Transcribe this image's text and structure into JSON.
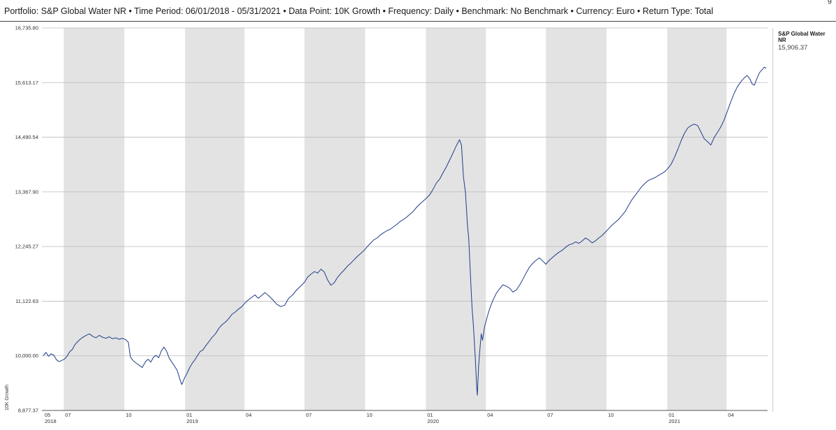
{
  "header": {
    "text": "Portfolio: S&P Global Water NR • Time Period: 06/01/2018 - 05/31/2021 • Data Point: 10K Growth • Frequency: Daily • Benchmark: No Benchmark • Currency: Euro • Return Type: Total",
    "corner": "g"
  },
  "legend": {
    "name": "S&P Global Water NR",
    "value": "15,906.37"
  },
  "colors": {
    "line": "#1f3c88",
    "band": "#e3e3e3",
    "grid": "#bbbbbb"
  },
  "chart_data": {
    "type": "line",
    "title": "",
    "xlabel": "",
    "ylabel": "10K Growth",
    "ylim": [
      8877.37,
      16735.8
    ],
    "y_ticks": [
      {
        "value": 16735.8,
        "label": "16,735.80"
      },
      {
        "value": 15613.17,
        "label": "15,613.17"
      },
      {
        "value": 14490.54,
        "label": "14,490.54"
      },
      {
        "value": 13367.9,
        "label": "13,367.90"
      },
      {
        "value": 12245.27,
        "label": "12,245.27"
      },
      {
        "value": 11122.63,
        "label": "11,122.63"
      },
      {
        "value": 10000.0,
        "label": "10,000.00"
      },
      {
        "value": 8877.37,
        "label": "8,877.37"
      }
    ],
    "x_ticks": [
      {
        "date": "2018-05-31",
        "label": "05",
        "year": "2018"
      },
      {
        "date": "2018-07-01",
        "label": "07",
        "year": ""
      },
      {
        "date": "2018-10-01",
        "label": "10",
        "year": ""
      },
      {
        "date": "2019-01-01",
        "label": "01",
        "year": "2019"
      },
      {
        "date": "2019-04-01",
        "label": "04",
        "year": ""
      },
      {
        "date": "2019-07-01",
        "label": "07",
        "year": ""
      },
      {
        "date": "2019-10-01",
        "label": "10",
        "year": ""
      },
      {
        "date": "2020-01-01",
        "label": "01",
        "year": "2020"
      },
      {
        "date": "2020-04-01",
        "label": "04",
        "year": ""
      },
      {
        "date": "2020-07-01",
        "label": "07",
        "year": ""
      },
      {
        "date": "2020-10-01",
        "label": "10",
        "year": ""
      },
      {
        "date": "2021-01-01",
        "label": "01",
        "year": "2021"
      },
      {
        "date": "2021-04-01",
        "label": "04",
        "year": ""
      }
    ],
    "shaded_bands": [
      [
        "2018-07-01",
        "2018-10-01"
      ],
      [
        "2019-01-01",
        "2019-04-01"
      ],
      [
        "2019-07-01",
        "2019-10-01"
      ],
      [
        "2020-01-01",
        "2020-04-01"
      ],
      [
        "2020-07-01",
        "2020-10-01"
      ],
      [
        "2021-01-01",
        "2021-04-01"
      ]
    ],
    "grid": true,
    "legend_position": "right",
    "series": [
      {
        "name": "S&P Global Water NR",
        "points": [
          [
            "2018-05-31",
            10000
          ],
          [
            "2018-06-04",
            10070
          ],
          [
            "2018-06-08",
            9990
          ],
          [
            "2018-06-12",
            10040
          ],
          [
            "2018-06-16",
            10010
          ],
          [
            "2018-06-20",
            9920
          ],
          [
            "2018-06-24",
            9880
          ],
          [
            "2018-06-28",
            9905
          ],
          [
            "2018-07-02",
            9930
          ],
          [
            "2018-07-06",
            9990
          ],
          [
            "2018-07-10",
            10080
          ],
          [
            "2018-07-14",
            10130
          ],
          [
            "2018-07-18",
            10230
          ],
          [
            "2018-07-22",
            10290
          ],
          [
            "2018-07-26",
            10340
          ],
          [
            "2018-07-30",
            10380
          ],
          [
            "2018-08-04",
            10420
          ],
          [
            "2018-08-09",
            10450
          ],
          [
            "2018-08-14",
            10400
          ],
          [
            "2018-08-19",
            10370
          ],
          [
            "2018-08-24",
            10420
          ],
          [
            "2018-08-29",
            10380
          ],
          [
            "2018-09-03",
            10360
          ],
          [
            "2018-09-08",
            10390
          ],
          [
            "2018-09-13",
            10350
          ],
          [
            "2018-09-18",
            10370
          ],
          [
            "2018-09-23",
            10340
          ],
          [
            "2018-09-28",
            10360
          ],
          [
            "2018-10-03",
            10330
          ],
          [
            "2018-10-07",
            10280
          ],
          [
            "2018-10-10",
            9980
          ],
          [
            "2018-10-13",
            9920
          ],
          [
            "2018-10-16",
            9880
          ],
          [
            "2018-10-20",
            9840
          ],
          [
            "2018-10-24",
            9800
          ],
          [
            "2018-10-28",
            9760
          ],
          [
            "2018-11-02",
            9880
          ],
          [
            "2018-11-06",
            9930
          ],
          [
            "2018-11-10",
            9870
          ],
          [
            "2018-11-14",
            9970
          ],
          [
            "2018-11-18",
            10010
          ],
          [
            "2018-11-22",
            9960
          ],
          [
            "2018-11-26",
            10100
          ],
          [
            "2018-11-30",
            10180
          ],
          [
            "2018-12-04",
            10090
          ],
          [
            "2018-12-08",
            9950
          ],
          [
            "2018-12-12",
            9870
          ],
          [
            "2018-12-16",
            9790
          ],
          [
            "2018-12-20",
            9700
          ],
          [
            "2018-12-24",
            9520
          ],
          [
            "2018-12-27",
            9410
          ],
          [
            "2018-12-31",
            9540
          ],
          [
            "2019-01-04",
            9640
          ],
          [
            "2019-01-08",
            9760
          ],
          [
            "2019-01-12",
            9850
          ],
          [
            "2019-01-16",
            9920
          ],
          [
            "2019-01-20",
            10010
          ],
          [
            "2019-01-24",
            10090
          ],
          [
            "2019-01-28",
            10120
          ],
          [
            "2019-02-01",
            10200
          ],
          [
            "2019-02-06",
            10290
          ],
          [
            "2019-02-11",
            10380
          ],
          [
            "2019-02-16",
            10450
          ],
          [
            "2019-02-21",
            10560
          ],
          [
            "2019-02-26",
            10640
          ],
          [
            "2019-03-03",
            10690
          ],
          [
            "2019-03-08",
            10760
          ],
          [
            "2019-03-13",
            10850
          ],
          [
            "2019-03-18",
            10900
          ],
          [
            "2019-03-23",
            10960
          ],
          [
            "2019-03-28",
            11010
          ],
          [
            "2019-04-02",
            11090
          ],
          [
            "2019-04-07",
            11150
          ],
          [
            "2019-04-12",
            11200
          ],
          [
            "2019-04-17",
            11250
          ],
          [
            "2019-04-22",
            11180
          ],
          [
            "2019-04-27",
            11240
          ],
          [
            "2019-05-02",
            11300
          ],
          [
            "2019-05-08",
            11230
          ],
          [
            "2019-05-14",
            11150
          ],
          [
            "2019-05-20",
            11060
          ],
          [
            "2019-05-26",
            11010
          ],
          [
            "2019-06-01",
            11040
          ],
          [
            "2019-06-07",
            11180
          ],
          [
            "2019-06-13",
            11250
          ],
          [
            "2019-06-19",
            11350
          ],
          [
            "2019-06-25",
            11430
          ],
          [
            "2019-07-01",
            11510
          ],
          [
            "2019-07-06",
            11620
          ],
          [
            "2019-07-11",
            11680
          ],
          [
            "2019-07-16",
            11730
          ],
          [
            "2019-07-21",
            11700
          ],
          [
            "2019-07-26",
            11780
          ],
          [
            "2019-07-31",
            11720
          ],
          [
            "2019-08-05",
            11560
          ],
          [
            "2019-08-10",
            11450
          ],
          [
            "2019-08-15",
            11500
          ],
          [
            "2019-08-20",
            11610
          ],
          [
            "2019-08-25",
            11690
          ],
          [
            "2019-08-30",
            11760
          ],
          [
            "2019-09-04",
            11840
          ],
          [
            "2019-09-09",
            11900
          ],
          [
            "2019-09-14",
            11970
          ],
          [
            "2019-09-19",
            12040
          ],
          [
            "2019-09-24",
            12100
          ],
          [
            "2019-09-29",
            12160
          ],
          [
            "2019-10-04",
            12240
          ],
          [
            "2019-10-09",
            12310
          ],
          [
            "2019-10-14",
            12380
          ],
          [
            "2019-10-19",
            12420
          ],
          [
            "2019-10-24",
            12480
          ],
          [
            "2019-10-29",
            12530
          ],
          [
            "2019-11-03",
            12570
          ],
          [
            "2019-11-08",
            12600
          ],
          [
            "2019-11-13",
            12650
          ],
          [
            "2019-11-18",
            12700
          ],
          [
            "2019-11-23",
            12760
          ],
          [
            "2019-11-28",
            12800
          ],
          [
            "2019-12-03",
            12850
          ],
          [
            "2019-12-08",
            12910
          ],
          [
            "2019-12-13",
            12970
          ],
          [
            "2019-12-18",
            13050
          ],
          [
            "2019-12-23",
            13120
          ],
          [
            "2019-12-28",
            13180
          ],
          [
            "2020-01-02",
            13240
          ],
          [
            "2020-01-07",
            13310
          ],
          [
            "2020-01-12",
            13420
          ],
          [
            "2020-01-17",
            13550
          ],
          [
            "2020-01-22",
            13630
          ],
          [
            "2020-01-27",
            13760
          ],
          [
            "2020-02-01",
            13880
          ],
          [
            "2020-02-06",
            14020
          ],
          [
            "2020-02-11",
            14160
          ],
          [
            "2020-02-16",
            14310
          ],
          [
            "2020-02-21",
            14440
          ],
          [
            "2020-02-24",
            14330
          ],
          [
            "2020-02-27",
            13680
          ],
          [
            "2020-03-01",
            13360
          ],
          [
            "2020-03-04",
            12700
          ],
          [
            "2020-03-06",
            12410
          ],
          [
            "2020-03-09",
            11550
          ],
          [
            "2020-03-11",
            11000
          ],
          [
            "2020-03-13",
            10640
          ],
          [
            "2020-03-16",
            9950
          ],
          [
            "2020-03-18",
            9380
          ],
          [
            "2020-03-19",
            9190
          ],
          [
            "2020-03-21",
            9800
          ],
          [
            "2020-03-23",
            10150
          ],
          [
            "2020-03-25",
            10450
          ],
          [
            "2020-03-27",
            10320
          ],
          [
            "2020-03-30",
            10600
          ],
          [
            "2020-04-03",
            10800
          ],
          [
            "2020-04-07",
            10980
          ],
          [
            "2020-04-12",
            11150
          ],
          [
            "2020-04-17",
            11290
          ],
          [
            "2020-04-22",
            11380
          ],
          [
            "2020-04-27",
            11460
          ],
          [
            "2020-05-02",
            11430
          ],
          [
            "2020-05-07",
            11390
          ],
          [
            "2020-05-12",
            11310
          ],
          [
            "2020-05-17",
            11350
          ],
          [
            "2020-05-22",
            11450
          ],
          [
            "2020-05-27",
            11570
          ],
          [
            "2020-06-01",
            11700
          ],
          [
            "2020-06-06",
            11820
          ],
          [
            "2020-06-11",
            11900
          ],
          [
            "2020-06-16",
            11960
          ],
          [
            "2020-06-21",
            12010
          ],
          [
            "2020-06-26",
            11950
          ],
          [
            "2020-07-01",
            11880
          ],
          [
            "2020-07-06",
            11960
          ],
          [
            "2020-07-11",
            12020
          ],
          [
            "2020-07-16",
            12080
          ],
          [
            "2020-07-21",
            12130
          ],
          [
            "2020-07-26",
            12170
          ],
          [
            "2020-07-31",
            12230
          ],
          [
            "2020-08-05",
            12280
          ],
          [
            "2020-08-10",
            12300
          ],
          [
            "2020-08-15",
            12340
          ],
          [
            "2020-08-20",
            12310
          ],
          [
            "2020-08-25",
            12360
          ],
          [
            "2020-08-30",
            12420
          ],
          [
            "2020-09-04",
            12380
          ],
          [
            "2020-09-09",
            12320
          ],
          [
            "2020-09-14",
            12360
          ],
          [
            "2020-09-19",
            12420
          ],
          [
            "2020-09-24",
            12470
          ],
          [
            "2020-09-29",
            12540
          ],
          [
            "2020-10-04",
            12610
          ],
          [
            "2020-10-09",
            12680
          ],
          [
            "2020-10-14",
            12740
          ],
          [
            "2020-10-19",
            12800
          ],
          [
            "2020-10-24",
            12880
          ],
          [
            "2020-10-29",
            12960
          ],
          [
            "2020-11-03",
            13080
          ],
          [
            "2020-11-08",
            13200
          ],
          [
            "2020-11-13",
            13290
          ],
          [
            "2020-11-18",
            13380
          ],
          [
            "2020-11-23",
            13470
          ],
          [
            "2020-11-28",
            13540
          ],
          [
            "2020-12-03",
            13600
          ],
          [
            "2020-12-08",
            13630
          ],
          [
            "2020-12-13",
            13660
          ],
          [
            "2020-12-18",
            13700
          ],
          [
            "2020-12-23",
            13740
          ],
          [
            "2020-12-28",
            13780
          ],
          [
            "2021-01-02",
            13850
          ],
          [
            "2021-01-07",
            13940
          ],
          [
            "2021-01-12",
            14080
          ],
          [
            "2021-01-17",
            14240
          ],
          [
            "2021-01-22",
            14420
          ],
          [
            "2021-01-27",
            14570
          ],
          [
            "2021-02-01",
            14680
          ],
          [
            "2021-02-06",
            14730
          ],
          [
            "2021-02-11",
            14760
          ],
          [
            "2021-02-16",
            14730
          ],
          [
            "2021-02-21",
            14600
          ],
          [
            "2021-02-26",
            14460
          ],
          [
            "2021-03-03",
            14400
          ],
          [
            "2021-03-08",
            14330
          ],
          [
            "2021-03-13",
            14480
          ],
          [
            "2021-03-18",
            14590
          ],
          [
            "2021-03-23",
            14700
          ],
          [
            "2021-03-28",
            14840
          ],
          [
            "2021-04-02",
            15020
          ],
          [
            "2021-04-07",
            15210
          ],
          [
            "2021-04-12",
            15380
          ],
          [
            "2021-04-17",
            15520
          ],
          [
            "2021-04-22",
            15620
          ],
          [
            "2021-04-27",
            15700
          ],
          [
            "2021-05-02",
            15760
          ],
          [
            "2021-05-06",
            15690
          ],
          [
            "2021-05-10",
            15580
          ],
          [
            "2021-05-13",
            15560
          ],
          [
            "2021-05-17",
            15700
          ],
          [
            "2021-05-21",
            15820
          ],
          [
            "2021-05-25",
            15880
          ],
          [
            "2021-05-28",
            15930
          ],
          [
            "2021-05-31",
            15906.37
          ]
        ]
      }
    ]
  }
}
